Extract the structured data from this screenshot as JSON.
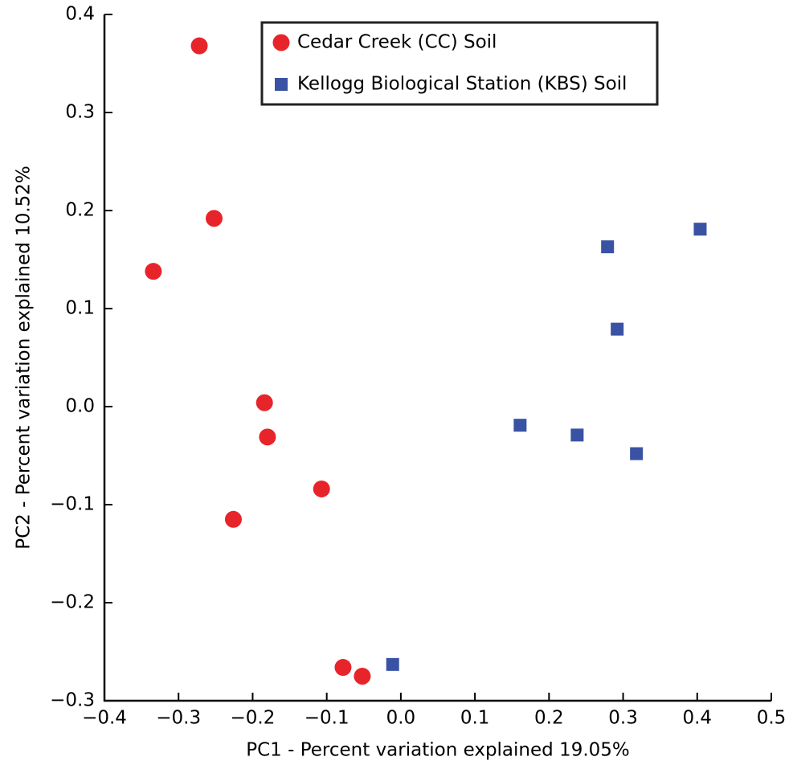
{
  "chart_data": {
    "type": "scatter",
    "xlabel": "PC1 - Percent variation explained 19.05%",
    "ylabel": "PC2 - Percent variation explained 10.52%",
    "xlim": [
      -0.4,
      0.5
    ],
    "ylim": [
      -0.3,
      0.4
    ],
    "xticks": [
      {
        "value": -0.4,
        "label": "−0.4"
      },
      {
        "value": -0.3,
        "label": "−0.3"
      },
      {
        "value": -0.2,
        "label": "−0.2"
      },
      {
        "value": -0.1,
        "label": "−0.1"
      },
      {
        "value": 0,
        "label": "0.0"
      },
      0.1,
      0.2,
      0.3,
      0.4,
      0.5
    ],
    "yticks": [
      {
        "value": -0.3,
        "label": "−0.3"
      },
      {
        "value": -0.2,
        "label": "−0.2"
      },
      {
        "value": -0.1,
        "label": "−0.1"
      },
      {
        "value": 0,
        "label": "0.0"
      },
      0.1,
      0.2,
      0.3,
      0.4
    ],
    "legend": "upper center",
    "series": [
      {
        "name": "Cedar Creek (CC) Soil",
        "color": "#e8242b",
        "marker": "circle",
        "x": [
          -0.272,
          -0.252,
          -0.334,
          -0.184,
          -0.18,
          -0.107,
          -0.226,
          -0.078,
          -0.052
        ],
        "values": [
          0.368,
          0.192,
          0.138,
          0.004,
          -0.031,
          -0.084,
          -0.115,
          -0.266,
          -0.275
        ]
      },
      {
        "name": "Kellogg Biological Station (KBS) Soil",
        "color": "#3a52a4",
        "marker": "square",
        "x": [
          -0.011,
          0.161,
          0.238,
          0.318,
          0.292,
          0.279,
          0.404
        ],
        "values": [
          -0.263,
          -0.019,
          -0.029,
          -0.048,
          0.079,
          0.163,
          0.181
        ]
      }
    ]
  }
}
